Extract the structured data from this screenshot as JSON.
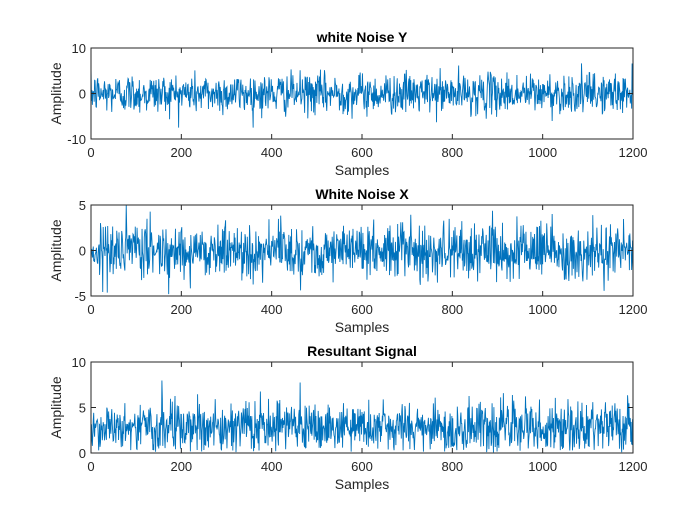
{
  "figure": {
    "background": "#ffffff",
    "line_color": "#0072BD"
  },
  "chart_data": [
    {
      "type": "line",
      "title": "white Noise Y",
      "xlabel": "Samples",
      "ylabel": "Amplitude",
      "xlim": [
        0,
        1200
      ],
      "ylim": [
        -10,
        10
      ],
      "xticks": [
        0,
        200,
        400,
        600,
        800,
        1000,
        1200
      ],
      "yticks": [
        -10,
        0,
        10
      ],
      "n_samples": 1200,
      "signal": {
        "description": "white Gaussian noise",
        "mean": 0,
        "std": 2.2,
        "min_approx": -7.5,
        "max_approx": 9
      },
      "series": [
        {
          "color": "#0072BD"
        }
      ],
      "grid": false
    },
    {
      "type": "line",
      "title": "White Noise X",
      "xlabel": "Samples",
      "ylabel": "Amplitude",
      "xlim": [
        0,
        1200
      ],
      "ylim": [
        -5,
        5
      ],
      "xticks": [
        0,
        200,
        400,
        600,
        800,
        1000,
        1200
      ],
      "yticks": [
        -5,
        0,
        5
      ],
      "n_samples": 1200,
      "signal": {
        "description": "white Gaussian noise",
        "mean": 0,
        "std": 1.5,
        "min_approx": -4.8,
        "max_approx": 5
      },
      "series": [
        {
          "color": "#0072BD"
        }
      ],
      "grid": false
    },
    {
      "type": "line",
      "title": "Resultant Signal",
      "xlabel": "Samples",
      "ylabel": "Amplitude",
      "xlim": [
        0,
        1200
      ],
      "ylim": [
        0,
        10
      ],
      "xticks": [
        0,
        200,
        400,
        600,
        800,
        1000,
        1200
      ],
      "yticks": [
        0,
        5,
        10
      ],
      "n_samples": 1200,
      "signal": {
        "description": "magnitude of combined noise",
        "mean": 2.8,
        "std": 1.4,
        "min_approx": 0,
        "max_approx": 9
      },
      "series": [
        {
          "color": "#0072BD"
        }
      ],
      "grid": false
    }
  ]
}
